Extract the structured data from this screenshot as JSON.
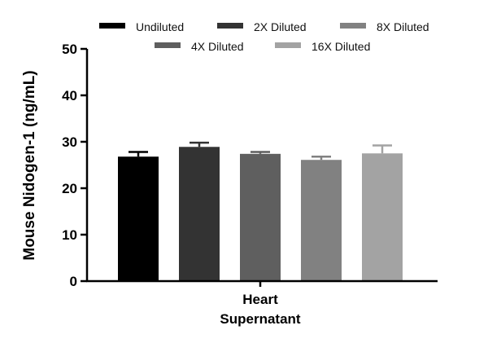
{
  "chart_data": {
    "type": "bar",
    "title": "",
    "ylabel": "Mouse Nidogen-1 (ng/mL)",
    "xlabel": "",
    "category_label_lines": [
      "Heart",
      "Supernatant"
    ],
    "ylim": [
      0,
      50
    ],
    "yticks": [
      0,
      10,
      20,
      30,
      40,
      50
    ],
    "grid": false,
    "legend_position": "top",
    "series": [
      {
        "name": "Undiluted",
        "value": 26.8,
        "error": 1.0,
        "color": "#000000"
      },
      {
        "name": "2X Diluted",
        "value": 28.9,
        "error": 0.9,
        "color": "#333333"
      },
      {
        "name": "4X Diluted",
        "value": 27.4,
        "error": 0.4,
        "color": "#5f5f5f"
      },
      {
        "name": "8X Diluted",
        "value": 26.1,
        "error": 0.7,
        "color": "#818181"
      },
      {
        "name": "16X Diluted",
        "value": 27.5,
        "error": 1.7,
        "color": "#a3a3a3"
      }
    ],
    "legend_order": [
      "Undiluted",
      "2X Diluted",
      "8X Diluted",
      "4X Diluted",
      "16X Diluted"
    ]
  }
}
